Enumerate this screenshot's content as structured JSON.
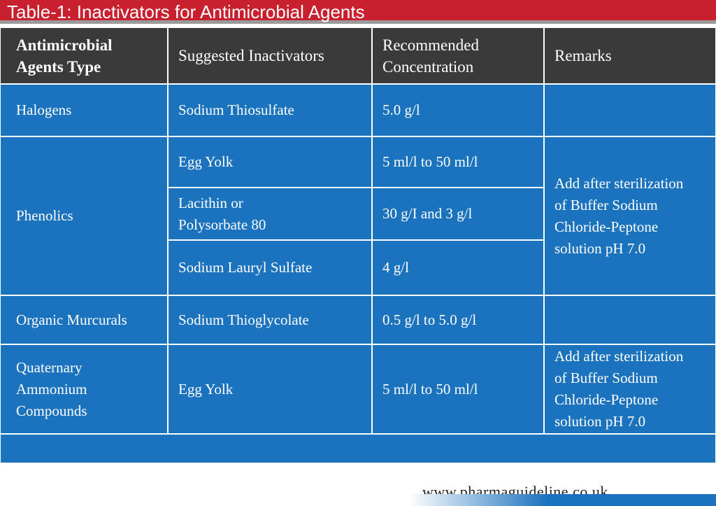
{
  "header": {
    "title": "Table-1: Inactivators for Antimicrobial Agents"
  },
  "table": {
    "columns": [
      "Antimicrobial\nAgents Type",
      "Suggested Inactivators",
      "Recommended\nConcentration",
      "Remarks"
    ],
    "rows": [
      {
        "agent": "Halogens",
        "inactivators": [
          {
            "name": "Sodium Thiosulfate",
            "concentration": "5.0 g/l"
          }
        ]
      },
      {
        "agent": "Phenolics",
        "inactivators": [
          {
            "name": "Egg Yolk",
            "concentration": "5 ml/l to 50 ml/l"
          },
          {
            "name": "Lacithin or\nPolysorbate 80",
            "concentration": "30 g/I and 3 g/l"
          },
          {
            "name": "Sodium Lauryl Sulfate",
            "concentration": "4 g/l"
          }
        ],
        "remarks": "Add after sterilization\nof Buffer Sodium\nChloride-Peptone\nsolution pH 7.0"
      },
      {
        "agent": "Organic Murcurals",
        "inactivators": [
          {
            "name": "Sodium Thioglycolate",
            "concentration": "0.5 g/l to 5.0 g/l"
          }
        ]
      },
      {
        "agent": "Quaternary\nAmmonium\nCompounds",
        "inactivators": [
          {
            "name": "Egg Yolk",
            "concentration": "5 ml/l to 50 ml/l"
          }
        ],
        "remarks": "Add after sterilization\nof Buffer Sodium\nChloride-Peptone\nsolution pH 7.0"
      }
    ]
  },
  "footer": {
    "url": "www.pharmaguideline.co.uk"
  }
}
